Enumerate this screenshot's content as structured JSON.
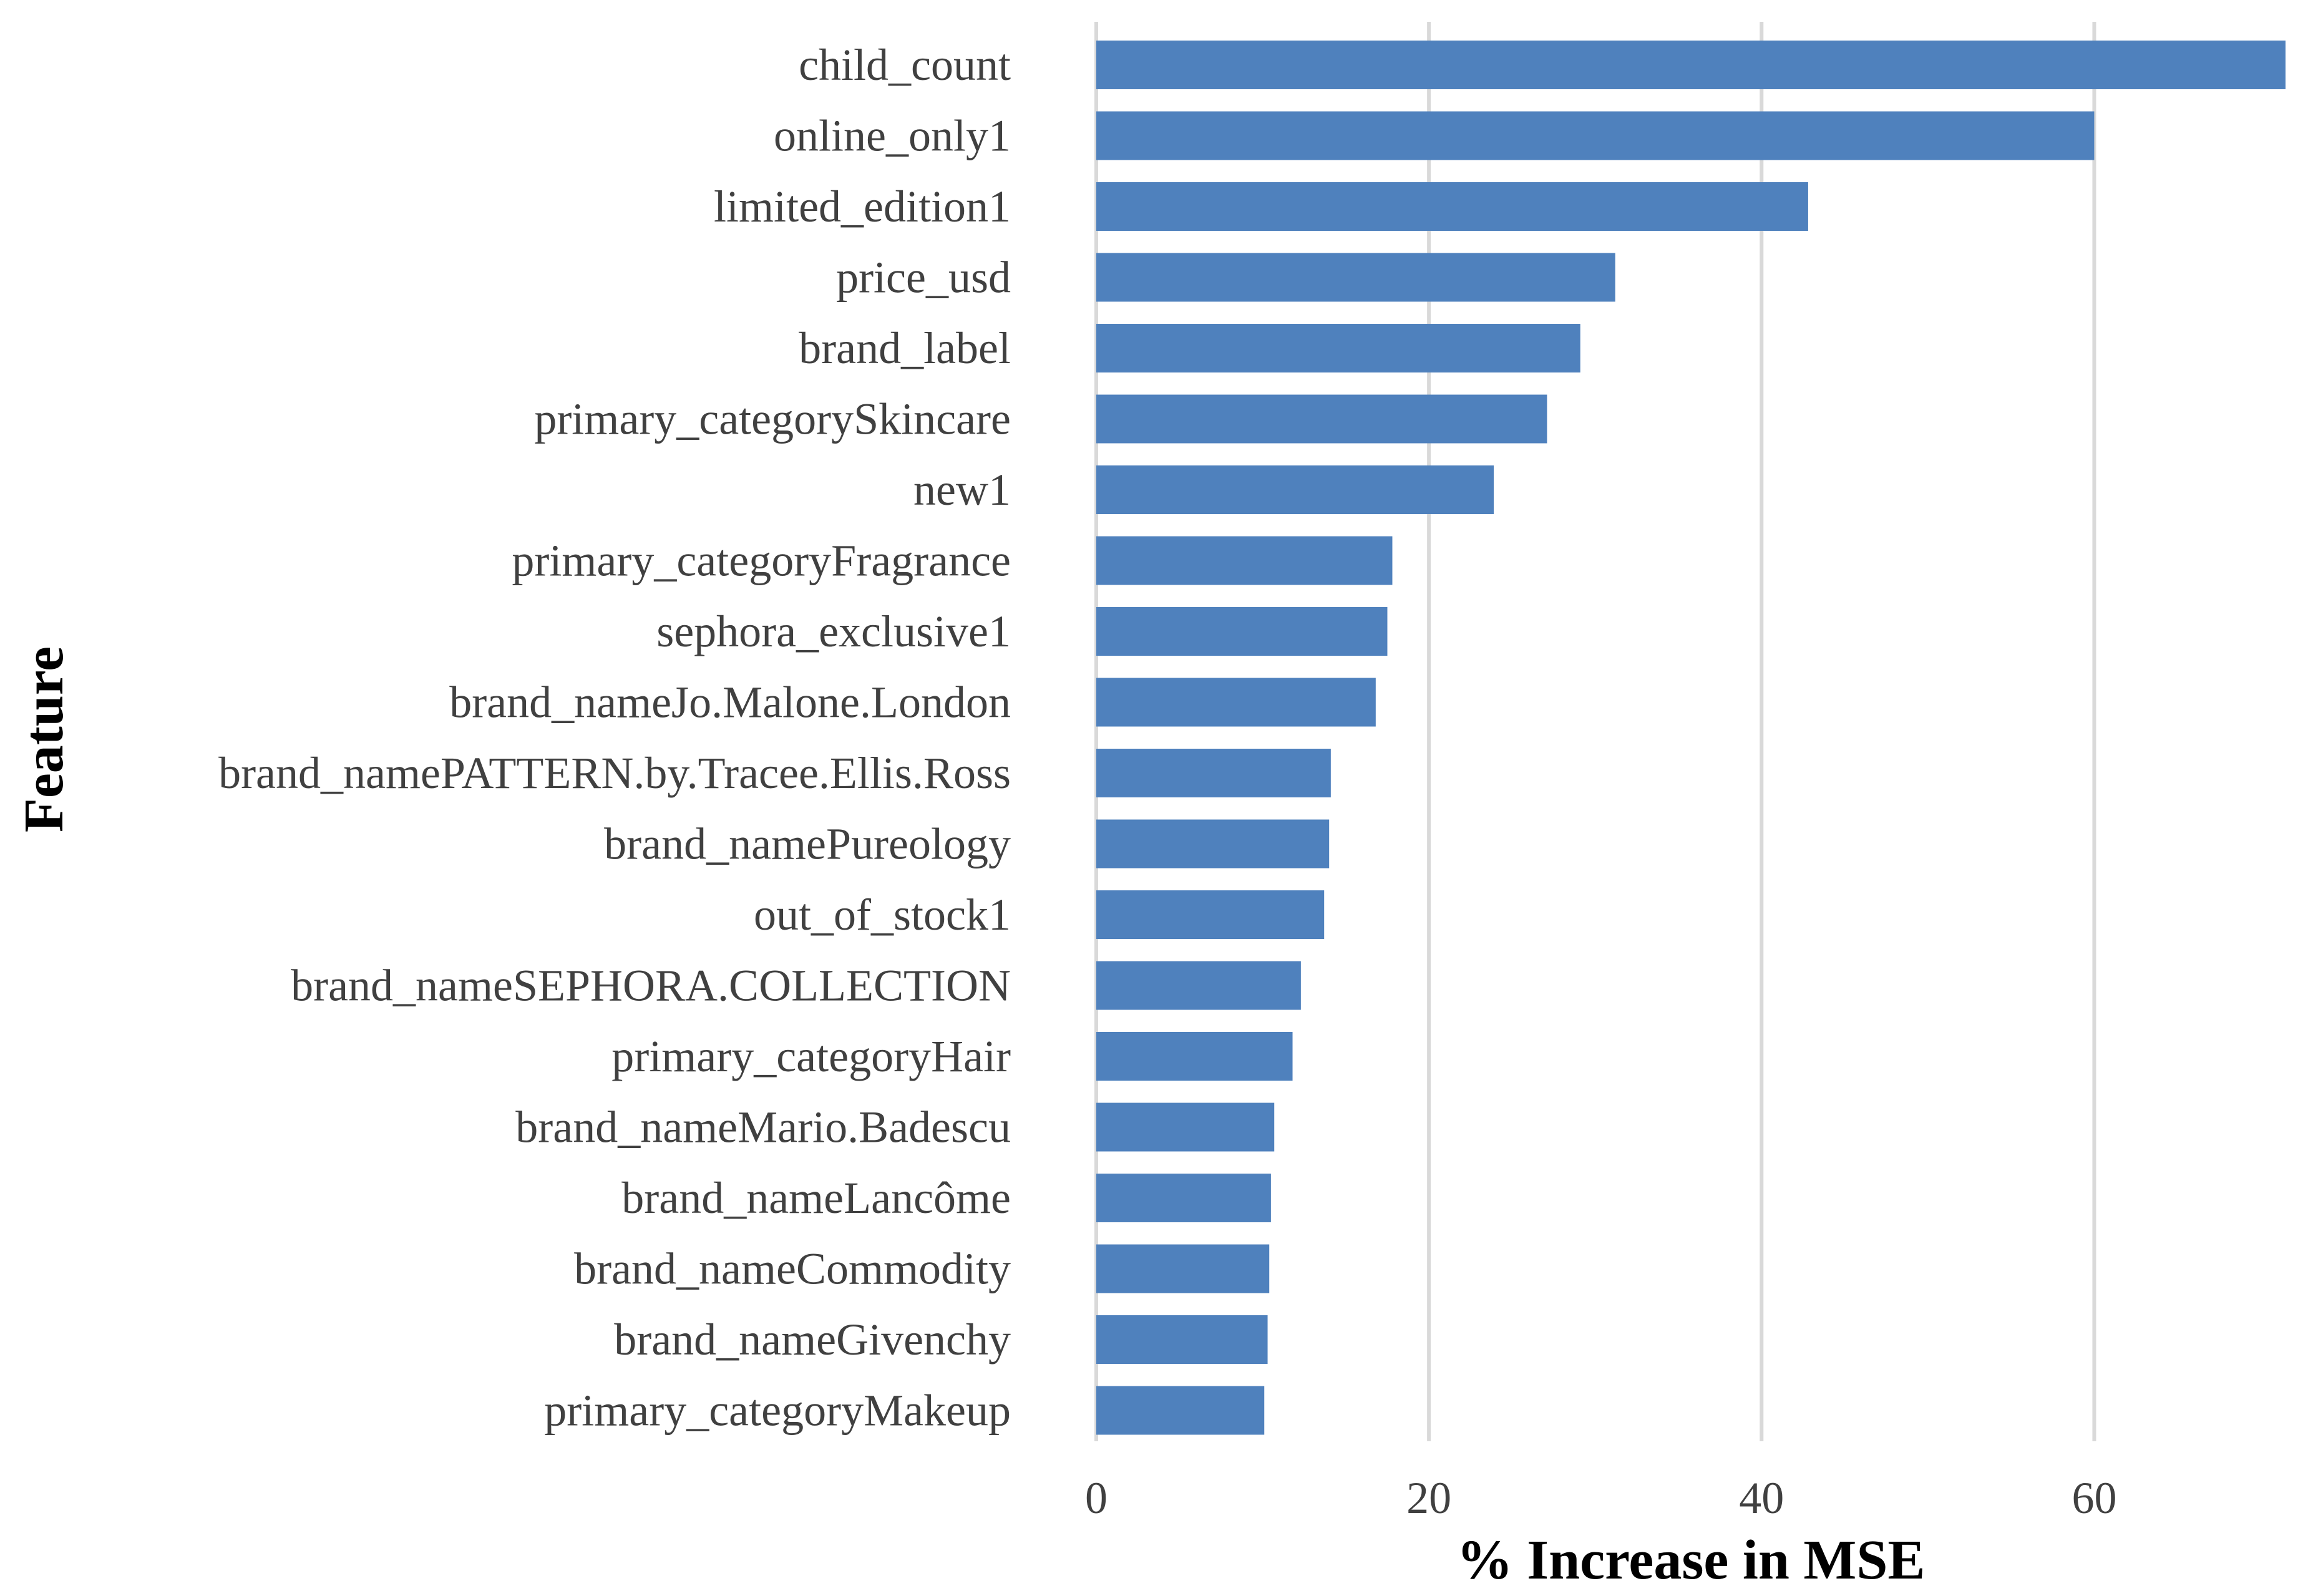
{
  "chart_data": {
    "type": "bar",
    "orientation": "horizontal",
    "categories": [
      "child_count",
      "online_only1",
      "limited_edition1",
      "price_usd",
      "brand_label",
      "primary_categorySkincare",
      "new1",
      "primary_categoryFragrance",
      "sephora_exclusive1",
      "brand_nameJo.Malone.London",
      "brand_namePATTERN.by.Tracee.Ellis.Ross",
      "brand_namePureology",
      "out_of_stock1",
      "brand_nameSEPHORA.COLLECTION",
      "primary_categoryHair",
      "brand_nameMario.Badescu",
      "brand_nameLancôme",
      "brand_nameCommodity",
      "brand_nameGivenchy",
      "primary_categoryMakeup"
    ],
    "values": [
      71.5,
      60.0,
      42.8,
      31.2,
      29.1,
      27.1,
      23.9,
      17.8,
      17.5,
      16.8,
      14.1,
      14.0,
      13.7,
      12.3,
      11.8,
      10.7,
      10.5,
      10.4,
      10.3,
      10.1
    ],
    "xlabel": "% Increase in MSE",
    "ylabel": "Feature",
    "xlim": [
      0,
      71.5
    ],
    "xticks": [
      "0",
      "20",
      "40",
      "60"
    ],
    "grid": "vertical",
    "bar_color": "#4f81bd"
  }
}
